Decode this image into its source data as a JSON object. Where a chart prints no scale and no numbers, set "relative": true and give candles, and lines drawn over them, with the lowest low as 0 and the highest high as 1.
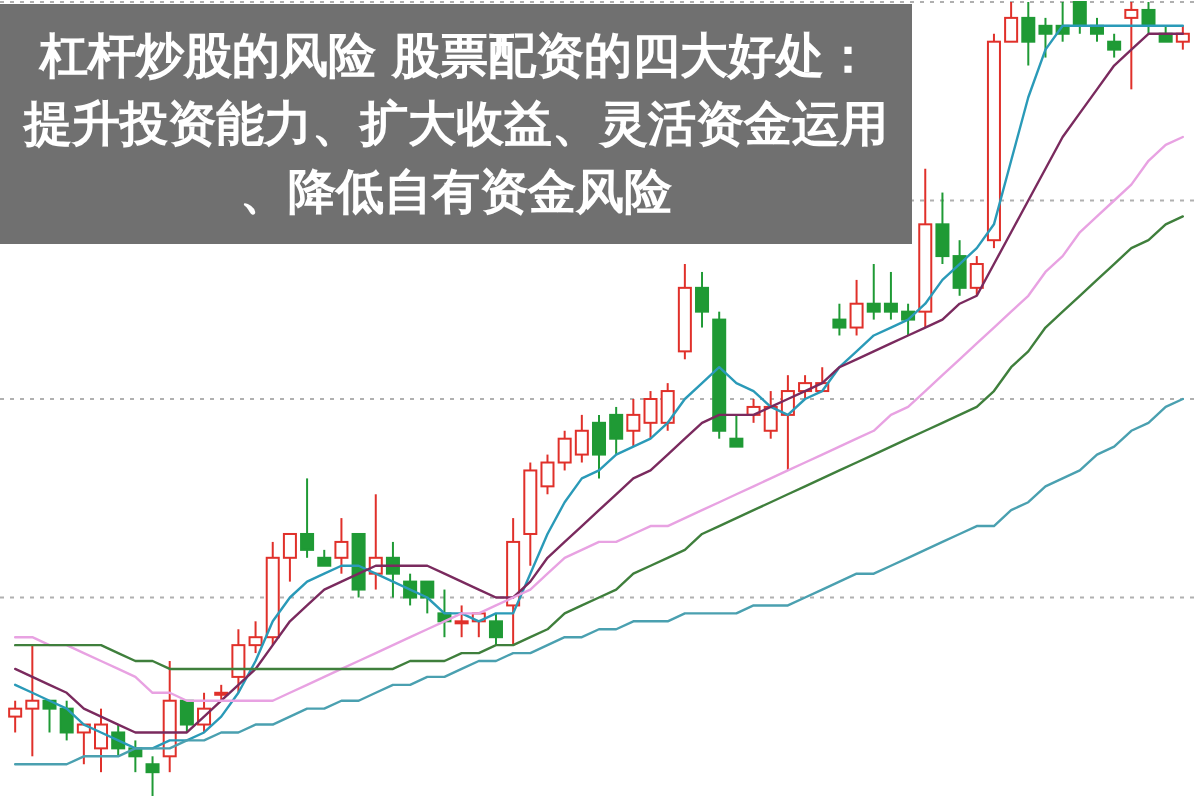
{
  "chart_data": {
    "type": "candlestick",
    "title": "杠杆炒股的风险 股票配资的四大好处：提升投资能力、扩大收益、灵活资金运用、降低自有资金风险",
    "relative": true,
    "grid": "y",
    "categories": [
      null,
      null,
      null,
      null,
      null,
      null,
      null,
      null,
      null,
      null,
      null,
      null,
      null,
      null,
      null,
      null,
      null,
      null,
      null,
      null,
      null,
      null,
      null,
      null,
      null,
      null,
      null,
      null,
      null,
      null,
      null,
      null,
      null,
      null,
      null,
      null,
      null,
      null,
      null,
      null,
      null,
      null,
      null,
      null,
      null,
      null,
      null,
      null,
      null,
      null,
      null,
      null,
      null,
      null,
      null,
      null,
      null,
      null,
      null,
      null,
      null,
      null,
      null,
      null,
      null,
      null,
      null,
      null,
      null
    ],
    "ohlc": [
      [
        0.1,
        0.12,
        0.08,
        0.11
      ],
      [
        0.11,
        0.19,
        0.05,
        0.12
      ],
      [
        0.12,
        0.12,
        0.08,
        0.11
      ],
      [
        0.11,
        0.12,
        0.07,
        0.08
      ],
      [
        0.08,
        0.09,
        0.04,
        0.09
      ],
      [
        0.06,
        0.11,
        0.03,
        0.09
      ],
      [
        0.08,
        0.09,
        0.05,
        0.06
      ],
      [
        0.06,
        0.07,
        0.03,
        0.05
      ],
      [
        0.04,
        0.05,
        0,
        0.03
      ],
      [
        0.05,
        0.17,
        0.03,
        0.12
      ],
      [
        0.12,
        0.12,
        0.08,
        0.09
      ],
      [
        0.09,
        0.13,
        0.08,
        0.11
      ],
      [
        0.13,
        0.14,
        0.12,
        0.13
      ],
      [
        0.15,
        0.21,
        0.13,
        0.19
      ],
      [
        0.19,
        0.22,
        0.18,
        0.2
      ],
      [
        0.2,
        0.32,
        0.19,
        0.3
      ],
      [
        0.3,
        0.33,
        0.27,
        0.33
      ],
      [
        0.33,
        0.4,
        0.3,
        0.31
      ],
      [
        0.3,
        0.31,
        0.29,
        0.29
      ],
      [
        0.3,
        0.35,
        0.28,
        0.32
      ],
      [
        0.33,
        0.33,
        0.25,
        0.26
      ],
      [
        0.28,
        0.38,
        0.26,
        0.3
      ],
      [
        0.3,
        0.32,
        0.25,
        0.28
      ],
      [
        0.27,
        0.28,
        0.24,
        0.25
      ],
      [
        0.27,
        0.27,
        0.23,
        0.25
      ],
      [
        0.23,
        0.26,
        0.2,
        0.22
      ],
      [
        0.22,
        0.24,
        0.2,
        0.22
      ],
      [
        0.22,
        0.23,
        0.2,
        0.23
      ],
      [
        0.22,
        0.23,
        0.19,
        0.2
      ],
      [
        0.24,
        0.35,
        0.19,
        0.32
      ],
      [
        0.33,
        0.42,
        0.29,
        0.41
      ],
      [
        0.39,
        0.43,
        0.38,
        0.42
      ],
      [
        0.42,
        0.46,
        0.41,
        0.45
      ],
      [
        0.43,
        0.48,
        0.42,
        0.46
      ],
      [
        0.47,
        0.48,
        0.4,
        0.43
      ],
      [
        0.48,
        0.49,
        0.43,
        0.45
      ],
      [
        0.46,
        0.5,
        0.44,
        0.48
      ],
      [
        0.47,
        0.51,
        0.45,
        0.5
      ],
      [
        0.47,
        0.52,
        0.46,
        0.51
      ],
      [
        0.56,
        0.67,
        0.55,
        0.64
      ],
      [
        0.64,
        0.66,
        0.59,
        0.61
      ],
      [
        0.6,
        0.61,
        0.45,
        0.46
      ],
      [
        0.45,
        0.48,
        0.44,
        0.44
      ],
      [
        0.48,
        0.5,
        0.47,
        0.49
      ],
      [
        0.46,
        0.51,
        0.45,
        0.49
      ],
      [
        0.48,
        0.53,
        0.41,
        0.51
      ],
      [
        0.51,
        0.53,
        0.5,
        0.52
      ],
      [
        0.51,
        0.54,
        0.51,
        0.52
      ],
      [
        0.6,
        0.62,
        0.58,
        0.59
      ],
      [
        0.59,
        0.65,
        0.58,
        0.62
      ],
      [
        0.62,
        0.67,
        0.6,
        0.61
      ],
      [
        0.62,
        0.66,
        0.6,
        0.61
      ],
      [
        0.61,
        0.62,
        0.58,
        0.6
      ],
      [
        0.61,
        0.79,
        0.59,
        0.72
      ],
      [
        0.72,
        0.76,
        0.67,
        0.68
      ],
      [
        0.68,
        0.7,
        0.63,
        0.64
      ],
      [
        0.64,
        0.68,
        0.63,
        0.67
      ],
      [
        0.7,
        0.96,
        0.69,
        0.95
      ],
      [
        0.95,
        1,
        0.95,
        0.98
      ],
      [
        0.98,
        1,
        0.92,
        0.95
      ],
      [
        0.97,
        0.98,
        0.93,
        0.96
      ],
      [
        0.97,
        1,
        0.95,
        0.96
      ],
      [
        1,
        1,
        0.96,
        0.97
      ],
      [
        0.97,
        0.98,
        0.95,
        0.96
      ],
      [
        0.95,
        0.96,
        0.93,
        0.94
      ],
      [
        0.98,
        1,
        0.89,
        0.99
      ],
      [
        0.99,
        1,
        0.96,
        0.97
      ],
      [
        0.96,
        0.97,
        0.95,
        0.95
      ],
      [
        0.95,
        0.97,
        0.94,
        0.96
      ]
    ],
    "series": [
      {
        "type": "line",
        "color": "#2a9ab8",
        "values": [
          0.14,
          0.13,
          0.12,
          0.11,
          0.09,
          0.08,
          0.07,
          0.06,
          0.06,
          0.07,
          0.07,
          0.08,
          0.1,
          0.13,
          0.17,
          0.22,
          0.25,
          0.27,
          0.28,
          0.29,
          0.29,
          0.28,
          0.27,
          0.26,
          0.25,
          0.23,
          0.23,
          0.22,
          0.23,
          0.23,
          0.28,
          0.33,
          0.37,
          0.4,
          0.41,
          0.43,
          0.44,
          0.45,
          0.47,
          0.5,
          0.52,
          0.54,
          0.52,
          0.51,
          0.49,
          0.48,
          0.5,
          0.51,
          0.54,
          0.56,
          0.58,
          0.59,
          0.6,
          0.62,
          0.65,
          0.67,
          0.69,
          0.72,
          0.8,
          0.88,
          0.94,
          0.97,
          0.97,
          0.97,
          0.97,
          0.97,
          0.97,
          0.97,
          0.97
        ]
      },
      {
        "type": "line",
        "color": "#7a2a5e",
        "values": [
          0.16,
          0.15,
          0.14,
          0.13,
          0.11,
          0.1,
          0.09,
          0.08,
          0.08,
          0.08,
          0.08,
          0.1,
          0.12,
          0.14,
          0.16,
          0.19,
          0.22,
          0.24,
          0.26,
          0.27,
          0.28,
          0.29,
          0.29,
          0.29,
          0.29,
          0.28,
          0.27,
          0.26,
          0.25,
          0.25,
          0.27,
          0.3,
          0.32,
          0.34,
          0.36,
          0.38,
          0.4,
          0.41,
          0.43,
          0.45,
          0.47,
          0.48,
          0.48,
          0.48,
          0.49,
          0.5,
          0.51,
          0.52,
          0.54,
          0.55,
          0.56,
          0.57,
          0.58,
          0.59,
          0.6,
          0.62,
          0.63,
          0.67,
          0.71,
          0.75,
          0.79,
          0.83,
          0.86,
          0.89,
          0.92,
          0.94,
          0.96,
          0.96,
          0.96
        ]
      },
      {
        "type": "line",
        "color": "#e8a2e2",
        "values": [
          0.2,
          0.2,
          0.19,
          0.19,
          0.18,
          0.17,
          0.16,
          0.15,
          0.13,
          0.13,
          0.12,
          0.12,
          0.12,
          0.12,
          0.12,
          0.12,
          0.13,
          0.14,
          0.15,
          0.16,
          0.17,
          0.18,
          0.19,
          0.2,
          0.21,
          0.22,
          0.23,
          0.23,
          0.24,
          0.25,
          0.26,
          0.28,
          0.3,
          0.31,
          0.32,
          0.32,
          0.33,
          0.34,
          0.34,
          0.35,
          0.36,
          0.37,
          0.38,
          0.39,
          0.4,
          0.41,
          0.42,
          0.43,
          0.44,
          0.45,
          0.46,
          0.48,
          0.49,
          0.51,
          0.53,
          0.55,
          0.57,
          0.59,
          0.61,
          0.63,
          0.66,
          0.68,
          0.71,
          0.73,
          0.75,
          0.77,
          0.8,
          0.82,
          0.83
        ]
      },
      {
        "type": "line",
        "color": "#3f7f3c",
        "values": [
          0.19,
          0.19,
          0.19,
          0.19,
          0.19,
          0.19,
          0.18,
          0.17,
          0.17,
          0.16,
          0.16,
          0.16,
          0.16,
          0.16,
          0.16,
          0.16,
          0.16,
          0.16,
          0.16,
          0.16,
          0.16,
          0.16,
          0.16,
          0.17,
          0.17,
          0.17,
          0.18,
          0.18,
          0.19,
          0.19,
          0.2,
          0.21,
          0.23,
          0.24,
          0.25,
          0.26,
          0.28,
          0.29,
          0.3,
          0.31,
          0.33,
          0.34,
          0.35,
          0.36,
          0.37,
          0.38,
          0.39,
          0.4,
          0.41,
          0.42,
          0.43,
          0.44,
          0.45,
          0.46,
          0.47,
          0.48,
          0.49,
          0.51,
          0.54,
          0.56,
          0.59,
          0.61,
          0.63,
          0.65,
          0.67,
          0.69,
          0.7,
          0.72,
          0.73
        ]
      },
      {
        "type": "line",
        "color": "#4aa0b0",
        "values": [
          0.04,
          0.04,
          0.04,
          0.04,
          0.05,
          0.05,
          0.05,
          0.06,
          0.06,
          0.06,
          0.07,
          0.07,
          0.08,
          0.08,
          0.09,
          0.09,
          0.1,
          0.11,
          0.11,
          0.12,
          0.12,
          0.13,
          0.14,
          0.14,
          0.15,
          0.15,
          0.16,
          0.17,
          0.17,
          0.18,
          0.18,
          0.19,
          0.2,
          0.2,
          0.21,
          0.21,
          0.22,
          0.22,
          0.22,
          0.23,
          0.23,
          0.23,
          0.23,
          0.24,
          0.24,
          0.24,
          0.25,
          0.26,
          0.27,
          0.28,
          0.28,
          0.29,
          0.3,
          0.31,
          0.32,
          0.33,
          0.34,
          0.34,
          0.36,
          0.37,
          0.39,
          0.4,
          0.41,
          0.43,
          0.44,
          0.46,
          0.47,
          0.49,
          0.5
        ]
      }
    ]
  }
}
